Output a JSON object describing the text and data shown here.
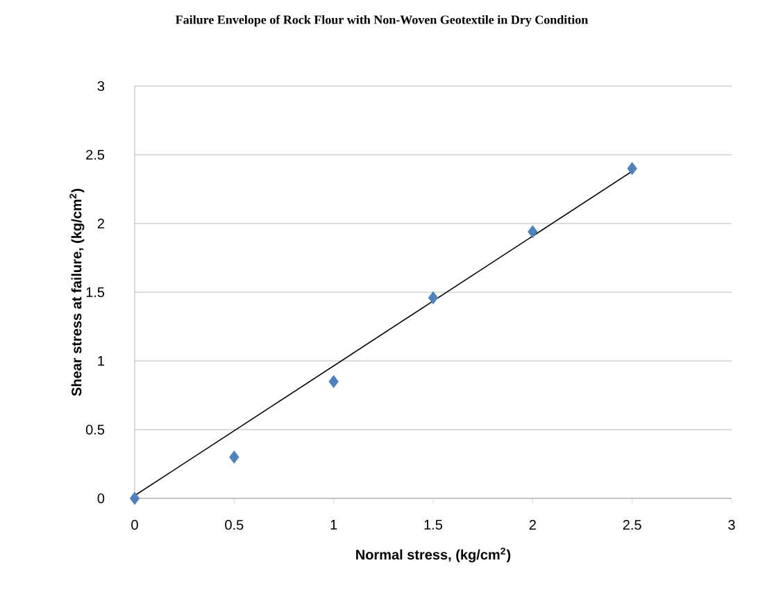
{
  "chart_data": {
    "type": "scatter",
    "title": "Failure Envelope of Rock Flour with Non-Woven Geotextile in Dry Condition",
    "xlabel": "Normal stress, (kg/cm$^{2}$)",
    "ylabel": "Shear stress at failure, (kg/cm$^{2}$)",
    "xlim": [
      0,
      3
    ],
    "ylim": [
      0,
      3
    ],
    "xticks": [
      0,
      0.5,
      1,
      1.5,
      2,
      2.5,
      3
    ],
    "yticks": [
      0,
      0.5,
      1,
      1.5,
      2,
      2.5,
      3
    ],
    "grid": "y",
    "marker": "diamond",
    "series": [
      {
        "x": [
          0,
          0.5,
          1,
          1.5,
          2,
          2.5
        ],
        "values": [
          0,
          0.3,
          0.85,
          1.46,
          1.94,
          2.4
        ],
        "color": "#4f81bd"
      },
      {
        "type": "line",
        "x": [
          0,
          2.5
        ],
        "values": [
          0.02,
          2.38
        ],
        "color": "#000000",
        "marker": "none",
        "line_style": "solid"
      }
    ]
  }
}
